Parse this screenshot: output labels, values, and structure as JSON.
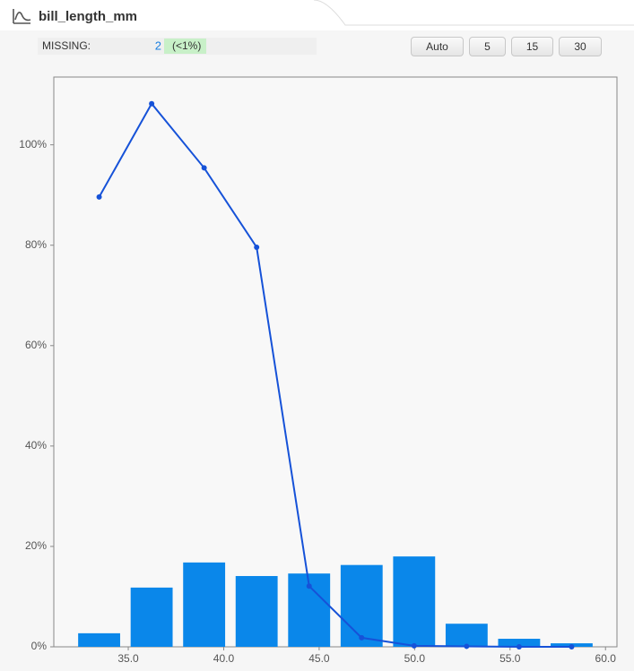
{
  "header": {
    "title": "bill_length_mm",
    "missing_label": "MISSING:",
    "missing_count": 2,
    "missing_pct": "(<1%)",
    "buttons": [
      "Auto",
      "5",
      "15",
      "30"
    ]
  },
  "chart_data": {
    "type": "histogram",
    "bins": [
      32.1,
      34.85,
      37.6,
      40.35,
      43.1,
      45.85,
      48.6,
      51.35,
      54.1,
      56.85,
      59.6
    ],
    "values": [
      2.7,
      11.8,
      16.8,
      14.1,
      14.6,
      16.3,
      18.0,
      4.6,
      1.6,
      0.7
    ],
    "color": "#0a87ea",
    "overlay": {
      "type": "line",
      "color": "#1652d8",
      "x": [
        33.475,
        36.225,
        38.975,
        41.725,
        44.475,
        47.225,
        49.975,
        52.725,
        55.475,
        58.225
      ],
      "values": [
        89.6,
        108.2,
        95.4,
        79.6,
        12.1,
        1.8,
        0.2,
        0.1,
        0,
        0
      ]
    },
    "xlim": [
      31.1,
      60.6
    ],
    "ylim": [
      0,
      113.5
    ],
    "xticks": [
      {
        "value": 35,
        "label": "35.0"
      },
      {
        "value": 40,
        "label": "40.0"
      },
      {
        "value": 45,
        "label": "45.0"
      },
      {
        "value": 50,
        "label": "50.0"
      },
      {
        "value": 55,
        "label": "55.0"
      },
      {
        "value": 60,
        "label": "60.0"
      }
    ],
    "yticks": [
      {
        "value": 0,
        "label": "0%"
      },
      {
        "value": 20,
        "label": "20%"
      },
      {
        "value": 40,
        "label": "40%"
      },
      {
        "value": 60,
        "label": "60%"
      },
      {
        "value": 80,
        "label": "80%"
      },
      {
        "value": 100,
        "label": "100%"
      }
    ]
  }
}
